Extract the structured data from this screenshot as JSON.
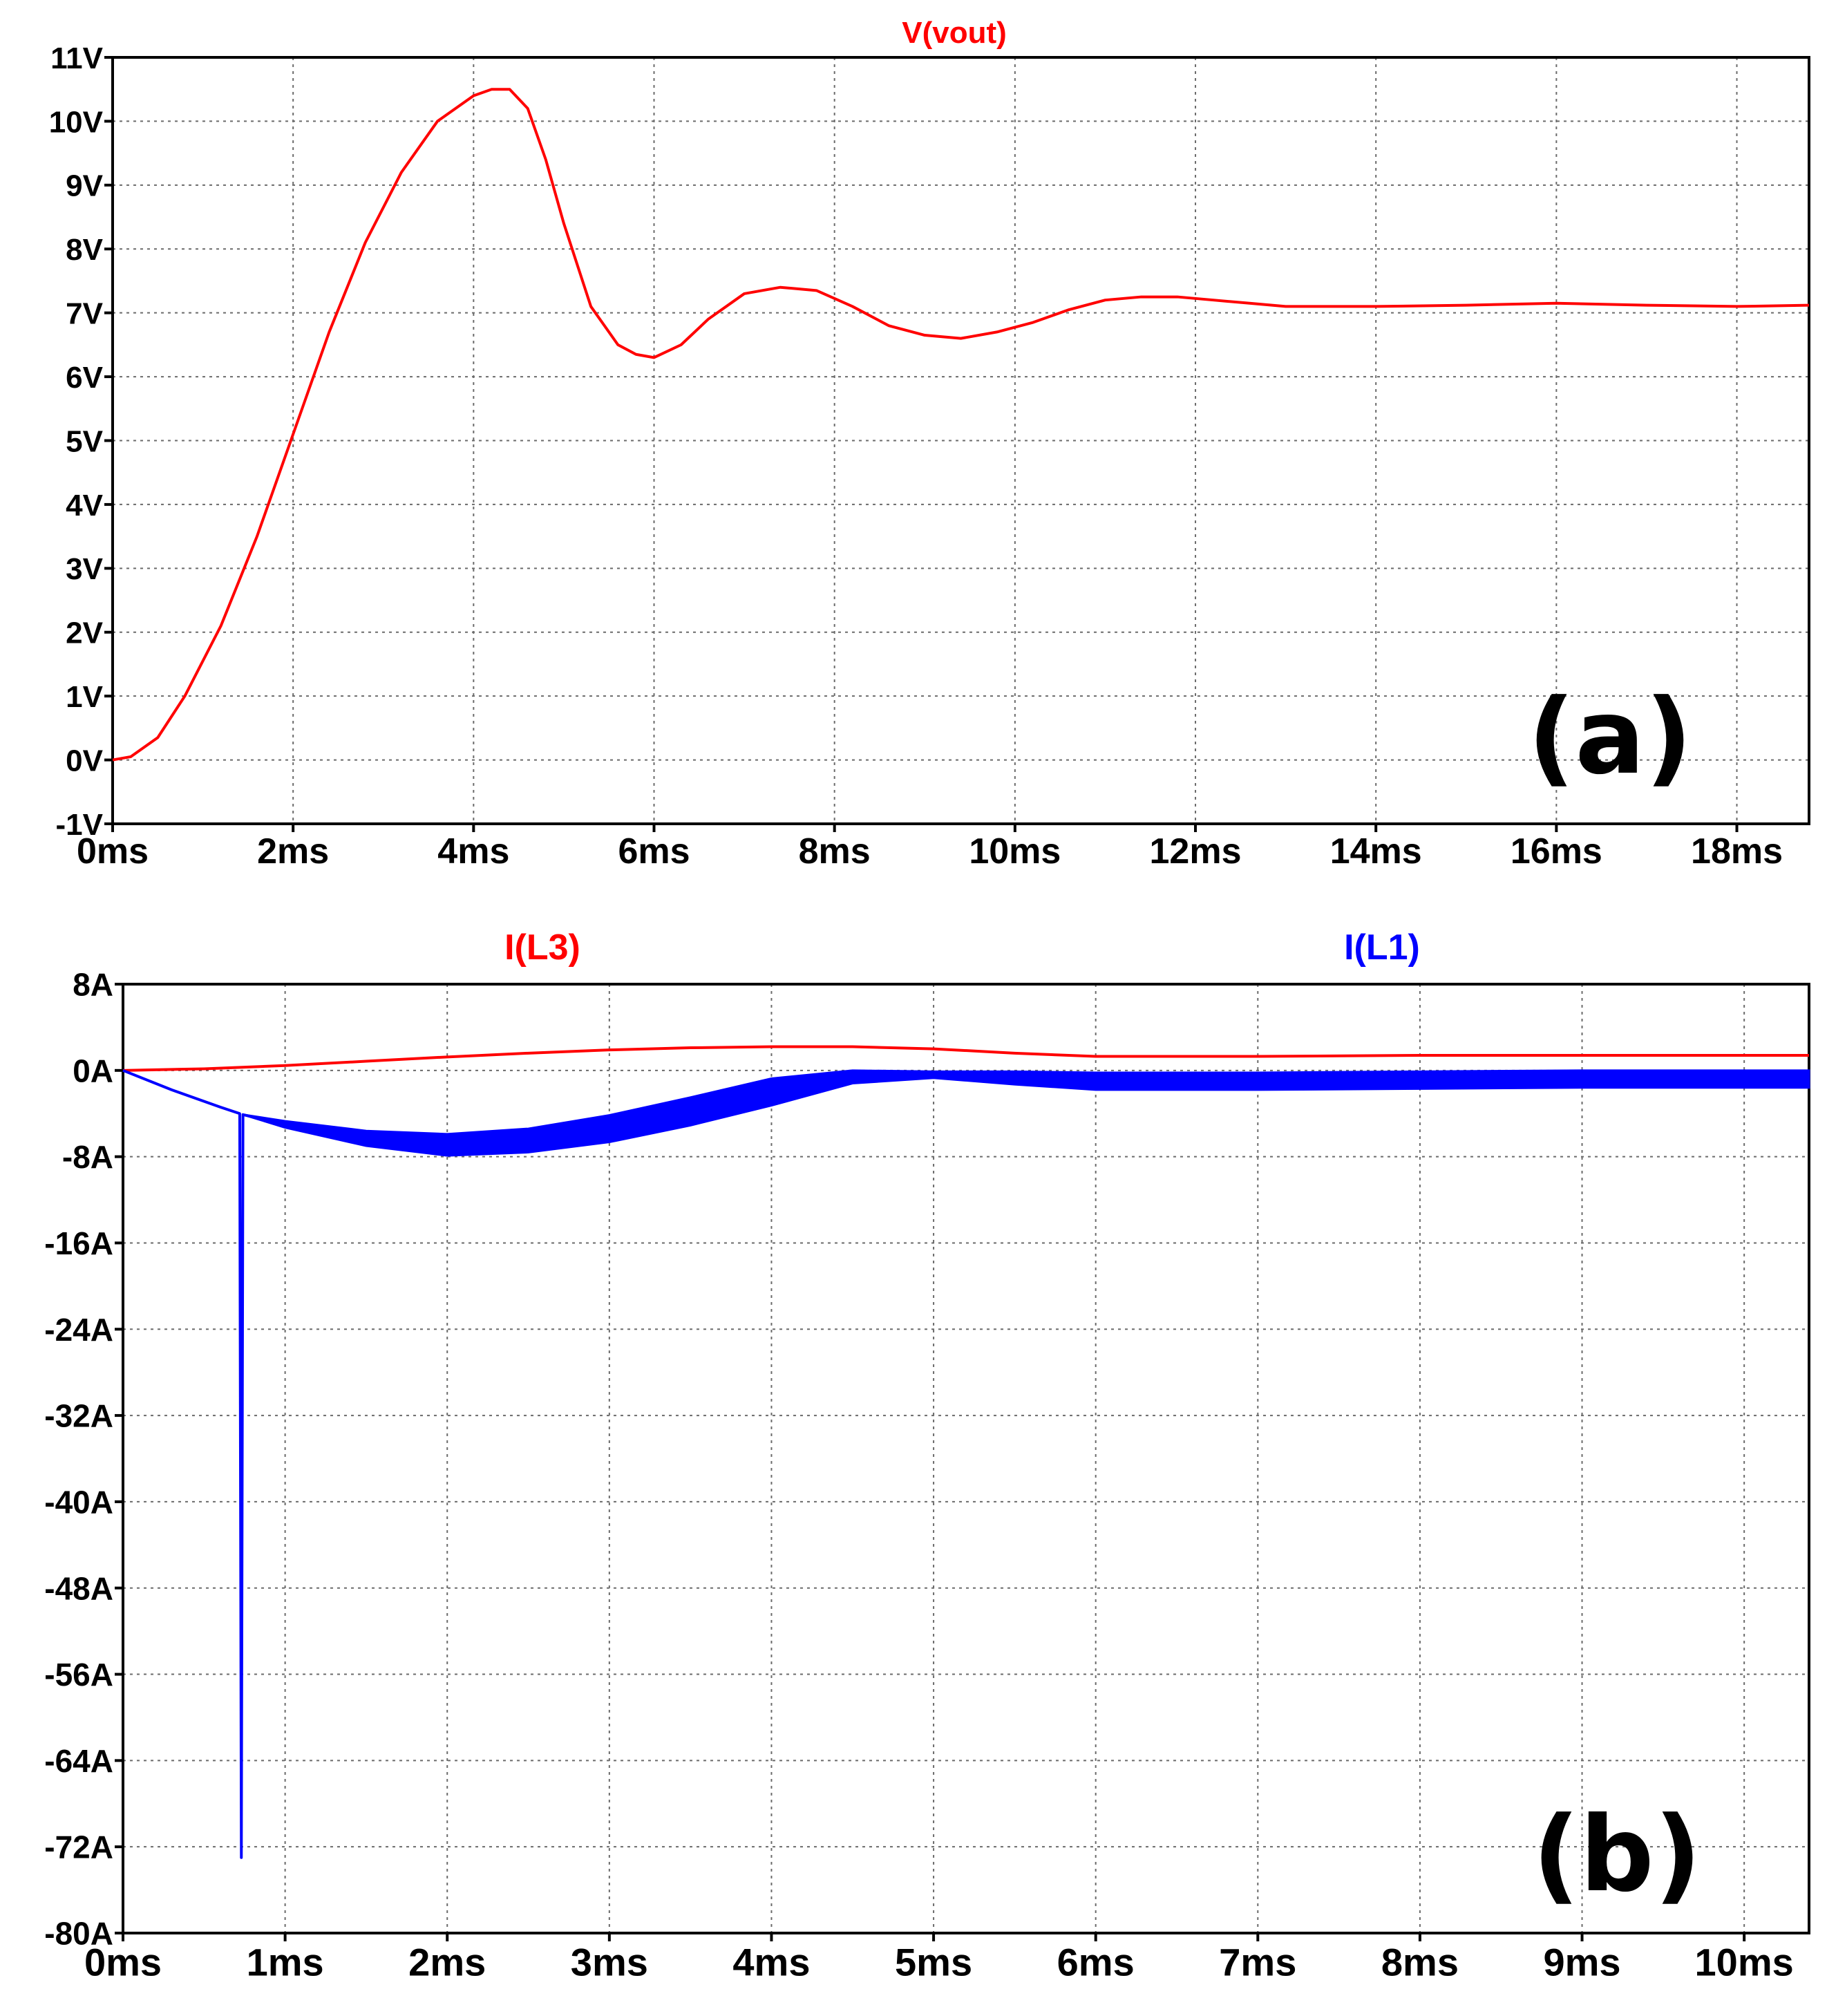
{
  "chart_data": [
    {
      "type": "line",
      "panel_label": "(a)",
      "title": "",
      "xlabel": "",
      "ylabel": "",
      "grid": true,
      "xlim": [
        0,
        18.8
      ],
      "ylim": [
        -1,
        11
      ],
      "x_ticks": [
        0,
        2,
        4,
        6,
        8,
        10,
        12,
        14,
        16,
        18
      ],
      "x_tick_labels": [
        "0ms",
        "2ms",
        "4ms",
        "6ms",
        "8ms",
        "10ms",
        "12ms",
        "14ms",
        "16ms",
        "18ms"
      ],
      "y_ticks": [
        11,
        10,
        9,
        8,
        7,
        6,
        5,
        4,
        3,
        2,
        1,
        0,
        -1
      ],
      "y_tick_labels": [
        "11V",
        "10V",
        "9V",
        "8V",
        "7V",
        "6V",
        "5V",
        "4V",
        "3V",
        "2V",
        "1V",
        "0V",
        "-1V"
      ],
      "series": [
        {
          "name": "V(vout)",
          "color": "#ff0000",
          "x": [
            0,
            0.2,
            0.5,
            0.8,
            1.2,
            1.6,
            2.0,
            2.4,
            2.8,
            3.2,
            3.6,
            4.0,
            4.2,
            4.4,
            4.6,
            4.8,
            5.0,
            5.3,
            5.6,
            5.8,
            6.0,
            6.3,
            6.6,
            7.0,
            7.4,
            7.8,
            8.2,
            8.6,
            9.0,
            9.4,
            9.8,
            10.2,
            10.6,
            11.0,
            11.4,
            11.8,
            12.2,
            12.6,
            13.0,
            14.0,
            15.0,
            16.0,
            17.0,
            18.0,
            18.8
          ],
          "y": [
            0,
            0.05,
            0.35,
            1.0,
            2.1,
            3.5,
            5.1,
            6.7,
            8.1,
            9.2,
            10.0,
            10.4,
            10.5,
            10.5,
            10.2,
            9.4,
            8.4,
            7.1,
            6.5,
            6.35,
            6.3,
            6.5,
            6.9,
            7.3,
            7.4,
            7.35,
            7.1,
            6.8,
            6.65,
            6.6,
            6.7,
            6.85,
            7.05,
            7.2,
            7.25,
            7.25,
            7.2,
            7.15,
            7.1,
            7.1,
            7.12,
            7.15,
            7.12,
            7.1,
            7.12
          ]
        }
      ]
    },
    {
      "type": "line",
      "panel_label": "(b)",
      "title": "",
      "xlabel": "",
      "ylabel": "",
      "grid": true,
      "xlim": [
        0,
        10.4
      ],
      "ylim": [
        -80,
        8
      ],
      "x_ticks": [
        0,
        1,
        2,
        3,
        4,
        5,
        6,
        7,
        8,
        9,
        10
      ],
      "x_tick_labels": [
        "0ms",
        "1ms",
        "2ms",
        "3ms",
        "4ms",
        "5ms",
        "6ms",
        "7ms",
        "8ms",
        "9ms",
        "10ms"
      ],
      "y_ticks": [
        8,
        0,
        -8,
        -16,
        -24,
        -32,
        -40,
        -48,
        -56,
        -64,
        -72,
        -80
      ],
      "y_tick_labels": [
        "8A",
        "0A",
        "-8A",
        "-16A",
        "-24A",
        "-32A",
        "-40A",
        "-48A",
        "-56A",
        "-64A",
        "-72A",
        "-80A"
      ],
      "series": [
        {
          "name": "I(L3)",
          "color": "#ff0000",
          "x": [
            0,
            0.5,
            1.0,
            1.5,
            2.0,
            2.5,
            3.0,
            3.5,
            4.0,
            4.5,
            5.0,
            5.5,
            6.0,
            7.0,
            8.0,
            9.0,
            10.0,
            10.4
          ],
          "y": [
            0,
            0.15,
            0.45,
            0.85,
            1.25,
            1.6,
            1.9,
            2.1,
            2.2,
            2.2,
            2.0,
            1.6,
            1.3,
            1.3,
            1.4,
            1.4,
            1.4,
            1.4
          ]
        },
        {
          "name": "I(L1)",
          "color": "#0000ff",
          "x": [
            0,
            0.3,
            0.6,
            0.72,
            0.73,
            0.74,
            1.0,
            1.5,
            2.0,
            2.5,
            3.0,
            3.5,
            4.0,
            4.5,
            5.0,
            5.5,
            6.0,
            7.0,
            8.0,
            9.0,
            10.0,
            10.4
          ],
          "y": [
            0,
            -1.8,
            -3.4,
            -4.0,
            -73.0,
            -4.1,
            -5.0,
            -6.3,
            -6.9,
            -6.5,
            -5.4,
            -3.8,
            -2.0,
            -0.6,
            -0.4,
            -0.7,
            -1.0,
            -1.0,
            -0.9,
            -0.8,
            -0.8,
            -0.8
          ],
          "ripple_peak_to_peak": [
            0,
            0,
            0,
            0,
            0,
            0,
            0.6,
            1.4,
            2.0,
            2.2,
            2.5,
            2.6,
            2.5,
            1.2,
            0.6,
            1.2,
            1.6,
            1.6,
            1.6,
            1.6,
            1.6,
            1.6
          ]
        }
      ]
    }
  ]
}
